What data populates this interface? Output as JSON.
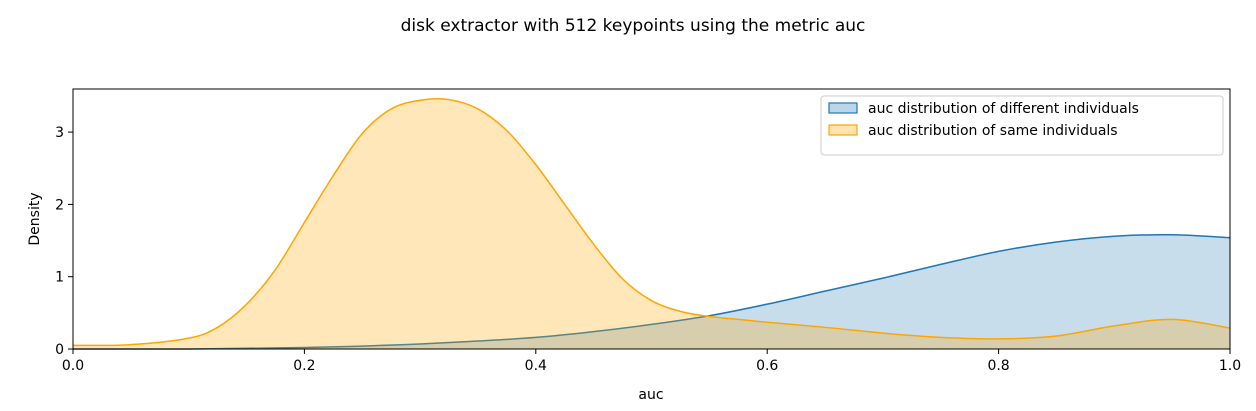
{
  "chart_data": {
    "type": "area",
    "title": "disk extractor with 512 keypoints using the metric auc",
    "xlabel": "auc",
    "ylabel": "Density",
    "xlim": [
      0.0,
      1.0
    ],
    "ylim": [
      0,
      3.6
    ],
    "xticks": [
      "0.0",
      "0.2",
      "0.4",
      "0.6",
      "0.8",
      "1.0"
    ],
    "yticks": [
      "0",
      "1",
      "2",
      "3"
    ],
    "grid": false,
    "legend_position": "top-right",
    "series": [
      {
        "name": "auc distribution of different individuals",
        "color": "#1f77b4",
        "x": [
          0.0,
          0.05,
          0.1,
          0.15,
          0.2,
          0.25,
          0.3,
          0.35,
          0.4,
          0.45,
          0.5,
          0.55,
          0.6,
          0.65,
          0.7,
          0.75,
          0.8,
          0.85,
          0.9,
          0.95,
          1.0
        ],
        "y": [
          0.0,
          0.0,
          0.0,
          0.01,
          0.02,
          0.04,
          0.07,
          0.11,
          0.16,
          0.24,
          0.34,
          0.46,
          0.62,
          0.8,
          0.98,
          1.17,
          1.35,
          1.48,
          1.56,
          1.58,
          1.54
        ]
      },
      {
        "name": "auc distribution of same individuals",
        "color": "#ffa500",
        "x": [
          0.0,
          0.05,
          0.1,
          0.125,
          0.15,
          0.175,
          0.2,
          0.225,
          0.25,
          0.275,
          0.3,
          0.325,
          0.35,
          0.375,
          0.4,
          0.425,
          0.45,
          0.475,
          0.5,
          0.525,
          0.55,
          0.575,
          0.6,
          0.65,
          0.7,
          0.75,
          0.8,
          0.85,
          0.9,
          0.95,
          1.0
        ],
        "y": [
          0.05,
          0.06,
          0.15,
          0.3,
          0.62,
          1.1,
          1.75,
          2.4,
          2.98,
          3.32,
          3.44,
          3.45,
          3.32,
          3.02,
          2.55,
          2.0,
          1.45,
          0.97,
          0.67,
          0.52,
          0.45,
          0.41,
          0.37,
          0.3,
          0.22,
          0.16,
          0.14,
          0.18,
          0.32,
          0.41,
          0.29
        ]
      }
    ]
  }
}
